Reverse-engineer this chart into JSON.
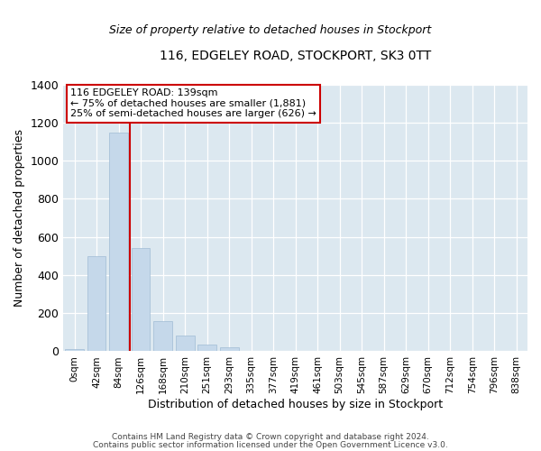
{
  "title1": "116, EDGELEY ROAD, STOCKPORT, SK3 0TT",
  "title2": "Size of property relative to detached houses in Stockport",
  "xlabel": "Distribution of detached houses by size in Stockport",
  "ylabel": "Number of detached properties",
  "footnote1": "Contains HM Land Registry data © Crown copyright and database right 2024.",
  "footnote2": "Contains public sector information licensed under the Open Government Licence v3.0.",
  "bar_labels": [
    "0sqm",
    "42sqm",
    "84sqm",
    "126sqm",
    "168sqm",
    "210sqm",
    "251sqm",
    "293sqm",
    "335sqm",
    "377sqm",
    "419sqm",
    "461sqm",
    "503sqm",
    "545sqm",
    "587sqm",
    "629sqm",
    "670sqm",
    "712sqm",
    "754sqm",
    "796sqm",
    "838sqm"
  ],
  "bar_values": [
    10,
    500,
    1150,
    540,
    160,
    83,
    35,
    20,
    0,
    0,
    0,
    0,
    0,
    0,
    0,
    0,
    0,
    0,
    0,
    0,
    0
  ],
  "bar_color": "#c5d8ea",
  "bar_edge_color": "#a0bcd4",
  "highlight_color": "#cc0000",
  "highlight_bar_index": 3,
  "annotation_line1": "116 EDGELEY ROAD: 139sqm",
  "annotation_line2": "← 75% of detached houses are smaller (1,881)",
  "annotation_line3": "25% of semi-detached houses are larger (626) →",
  "annotation_box_facecolor": "#ffffff",
  "annotation_box_edgecolor": "#cc0000",
  "ylim": [
    0,
    1400
  ],
  "yticks": [
    0,
    200,
    400,
    600,
    800,
    1000,
    1200,
    1400
  ],
  "background_color": "#ffffff",
  "plot_bg_color": "#dce8f0"
}
